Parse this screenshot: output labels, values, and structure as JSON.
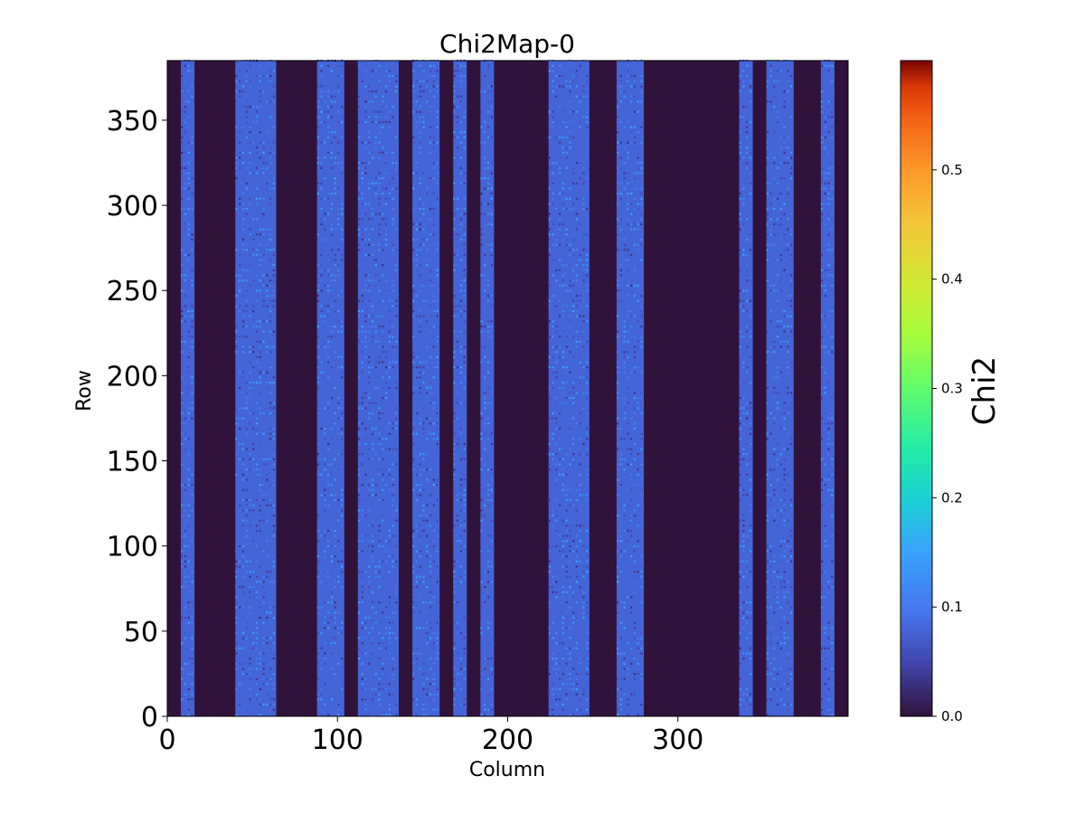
{
  "chart_data": {
    "type": "heatmap",
    "title": "Chi2Map-0",
    "xlabel": "Column",
    "ylabel": "Row",
    "xlim": [
      0,
      400
    ],
    "ylim": [
      0,
      385
    ],
    "xticks": [
      0,
      100,
      200,
      300
    ],
    "yticks": [
      0,
      50,
      100,
      150,
      200,
      250,
      300,
      350
    ],
    "colorbar": {
      "label": "Chi2",
      "colormap": "turbo",
      "range": [
        0.0,
        0.6
      ],
      "ticks": [
        "0.0",
        "0.1",
        "0.2",
        "0.3",
        "0.4",
        "0.5"
      ]
    },
    "background_value": 0.0,
    "active_column_ranges": [
      [
        8,
        16
      ],
      [
        40,
        64
      ],
      [
        88,
        104
      ],
      [
        112,
        136
      ],
      [
        144,
        160
      ],
      [
        168,
        176
      ],
      [
        184,
        192
      ],
      [
        224,
        248
      ],
      [
        264,
        280
      ],
      [
        336,
        344
      ],
      [
        352,
        368
      ],
      [
        384,
        392
      ]
    ],
    "active_value_mean": 0.08,
    "active_value_range": [
      0.03,
      0.15
    ]
  }
}
